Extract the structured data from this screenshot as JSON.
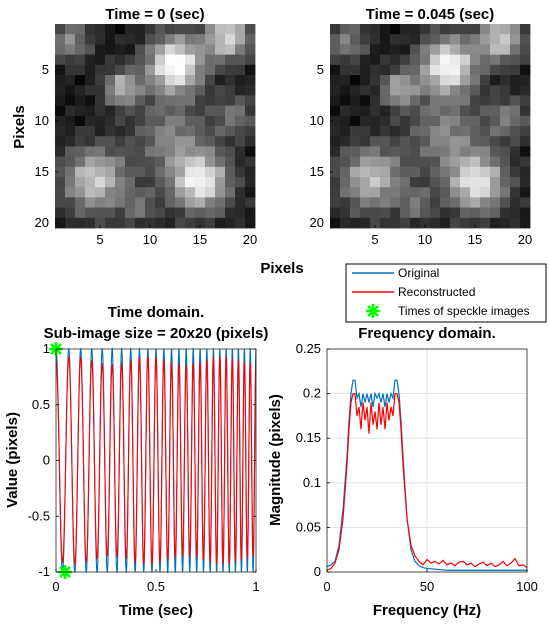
{
  "figure": {
    "speckle_left_title": "Time = 0 (sec)",
    "speckle_right_title": "Time = 0.045 (sec)",
    "speckle_ylabel": "Pixels",
    "speckle_xlabel": "Pixels",
    "legend": {
      "original": "Original",
      "reconstructed": "Reconstructed",
      "speckle_times": "Times of speckle images"
    },
    "time_title_line1": "Time domain.",
    "time_title_line2": "Sub-image size = 20x20 (pixels)",
    "time_xlabel": "Time (sec)",
    "time_ylabel": "Value (pixels)",
    "freq_title": "Frequency domain.",
    "freq_xlabel": "Frequency (Hz)",
    "freq_ylabel": "Magnitude (pixels)"
  },
  "chart_data": [
    {
      "type": "heatmap",
      "title": "Time = 0 (sec)",
      "ylabel": "Pixels",
      "xlabel": "Pixels",
      "x_ticks": [
        5,
        10,
        15,
        20
      ],
      "y_ticks": [
        5,
        10,
        15,
        20
      ],
      "grid_size": [
        20,
        20
      ],
      "colormap": "gray",
      "blobs": [
        {
          "x": 12.5,
          "y": 4.5,
          "radius": 2.0,
          "value": 0.95
        },
        {
          "x": 17.8,
          "y": 1.8,
          "radius": 1.6,
          "value": 0.75
        },
        {
          "x": 7.2,
          "y": 6.8,
          "radius": 1.3,
          "value": 0.6
        },
        {
          "x": 4.5,
          "y": 15.8,
          "radius": 2.3,
          "value": 0.7
        },
        {
          "x": 15.0,
          "y": 16.0,
          "radius": 2.1,
          "value": 0.85
        },
        {
          "x": 12.0,
          "y": 11.5,
          "radius": 2.5,
          "value": 0.4
        },
        {
          "x": 2.0,
          "y": 2.2,
          "radius": 1.4,
          "value": 0.45
        },
        {
          "x": 18.5,
          "y": 9.5,
          "radius": 1.5,
          "value": 0.35
        },
        {
          "x": 9.0,
          "y": 18.5,
          "radius": 1.2,
          "value": 0.3
        }
      ]
    },
    {
      "type": "heatmap",
      "title": "Time = 0.045 (sec)",
      "x_ticks": [
        5,
        10,
        15,
        20
      ],
      "y_ticks": [
        5,
        10,
        15,
        20
      ],
      "grid_size": [
        20,
        20
      ],
      "colormap": "gray",
      "blobs": [
        {
          "x": 12.3,
          "y": 4.6,
          "radius": 2.0,
          "value": 0.9
        },
        {
          "x": 17.6,
          "y": 2.0,
          "radius": 1.6,
          "value": 0.7
        },
        {
          "x": 7.4,
          "y": 6.9,
          "radius": 1.3,
          "value": 0.55
        },
        {
          "x": 4.7,
          "y": 15.6,
          "radius": 2.3,
          "value": 0.65
        },
        {
          "x": 15.2,
          "y": 16.1,
          "radius": 2.1,
          "value": 0.8
        },
        {
          "x": 12.0,
          "y": 11.3,
          "radius": 2.5,
          "value": 0.42
        },
        {
          "x": 2.2,
          "y": 2.3,
          "radius": 1.4,
          "value": 0.4
        },
        {
          "x": 18.3,
          "y": 9.7,
          "radius": 1.5,
          "value": 0.38
        },
        {
          "x": 9.2,
          "y": 18.3,
          "radius": 1.2,
          "value": 0.32
        }
      ]
    },
    {
      "type": "line",
      "title": "Time domain.",
      "subtitle": "Sub-image size = 20x20 (pixels)",
      "xlabel": "Time (sec)",
      "ylabel": "Value (pixels)",
      "xlim": [
        0,
        1
      ],
      "ylim": [
        -1,
        1
      ],
      "x_ticks": [
        0,
        0.5,
        1
      ],
      "y_ticks": [
        -1,
        -0.5,
        0,
        0.5,
        1
      ],
      "grid": false,
      "signal": {
        "f_start_hz": 15,
        "f_end_hz": 35
      },
      "series": [
        {
          "name": "Original",
          "color": "#0072BD",
          "amplitude": 1.0
        },
        {
          "name": "Reconstructed",
          "color": "#FF0000",
          "amplitude": 0.93
        }
      ],
      "markers": {
        "name": "Times of speckle images",
        "color": "#00FF00",
        "points": [
          [
            0,
            1
          ],
          [
            0.045,
            -1
          ]
        ]
      }
    },
    {
      "type": "line",
      "title": "Frequency domain.",
      "xlabel": "Frequency (Hz)",
      "ylabel": "Magnitude (pixels)",
      "xlim": [
        0,
        100
      ],
      "ylim": [
        0,
        0.25
      ],
      "x_ticks": [
        0,
        50,
        100
      ],
      "y_ticks": [
        0,
        0.05,
        0.1,
        0.15,
        0.2,
        0.25
      ],
      "grid": true,
      "series": [
        {
          "name": "Original",
          "color": "#0072BD",
          "x": [
            0,
            2,
            4,
            6,
            8,
            10,
            11,
            12,
            13,
            14,
            15,
            16,
            17,
            18,
            19,
            20,
            21,
            22,
            23,
            24,
            25,
            26,
            27,
            28,
            29,
            30,
            31,
            32,
            33,
            34,
            35,
            36,
            37,
            38,
            40,
            42,
            44,
            46,
            48,
            50,
            55,
            60,
            65,
            70,
            75,
            80,
            85,
            90,
            95,
            100
          ],
          "y": [
            0.006,
            0.008,
            0.012,
            0.03,
            0.07,
            0.13,
            0.17,
            0.2,
            0.215,
            0.215,
            0.195,
            0.2,
            0.185,
            0.2,
            0.19,
            0.2,
            0.19,
            0.2,
            0.185,
            0.2,
            0.195,
            0.2,
            0.19,
            0.2,
            0.185,
            0.2,
            0.19,
            0.2,
            0.195,
            0.215,
            0.215,
            0.2,
            0.17,
            0.13,
            0.06,
            0.025,
            0.012,
            0.007,
            0.005,
            0.004,
            0.003,
            0.002,
            0.002,
            0.002,
            0.002,
            0.002,
            0.002,
            0.002,
            0.002,
            0.002
          ]
        },
        {
          "name": "Reconstructed",
          "color": "#FF0000",
          "x": [
            0,
            2,
            4,
            6,
            8,
            10,
            11,
            12,
            13,
            14,
            15,
            16,
            17,
            18,
            19,
            20,
            21,
            22,
            23,
            24,
            25,
            26,
            27,
            28,
            29,
            30,
            31,
            32,
            33,
            34,
            35,
            36,
            37,
            38,
            40,
            42,
            44,
            46,
            48,
            50,
            52,
            54,
            56,
            58,
            60,
            62,
            64,
            66,
            68,
            70,
            72,
            74,
            76,
            78,
            80,
            82,
            84,
            86,
            88,
            90,
            92,
            94,
            96,
            98,
            100
          ],
          "y": [
            0.002,
            0.004,
            0.01,
            0.025,
            0.06,
            0.12,
            0.16,
            0.19,
            0.2,
            0.2,
            0.175,
            0.185,
            0.16,
            0.19,
            0.17,
            0.185,
            0.155,
            0.19,
            0.165,
            0.18,
            0.16,
            0.19,
            0.165,
            0.185,
            0.16,
            0.19,
            0.17,
            0.185,
            0.175,
            0.2,
            0.2,
            0.19,
            0.16,
            0.12,
            0.06,
            0.03,
            0.018,
            0.012,
            0.008,
            0.014,
            0.01,
            0.012,
            0.009,
            0.013,
            0.008,
            0.01,
            0.007,
            0.011,
            0.012,
            0.008,
            0.01,
            0.006,
            0.009,
            0.011,
            0.007,
            0.01,
            0.006,
            0.008,
            0.012,
            0.007,
            0.01,
            0.015,
            0.007,
            0.008,
            0.005
          ]
        }
      ]
    }
  ]
}
